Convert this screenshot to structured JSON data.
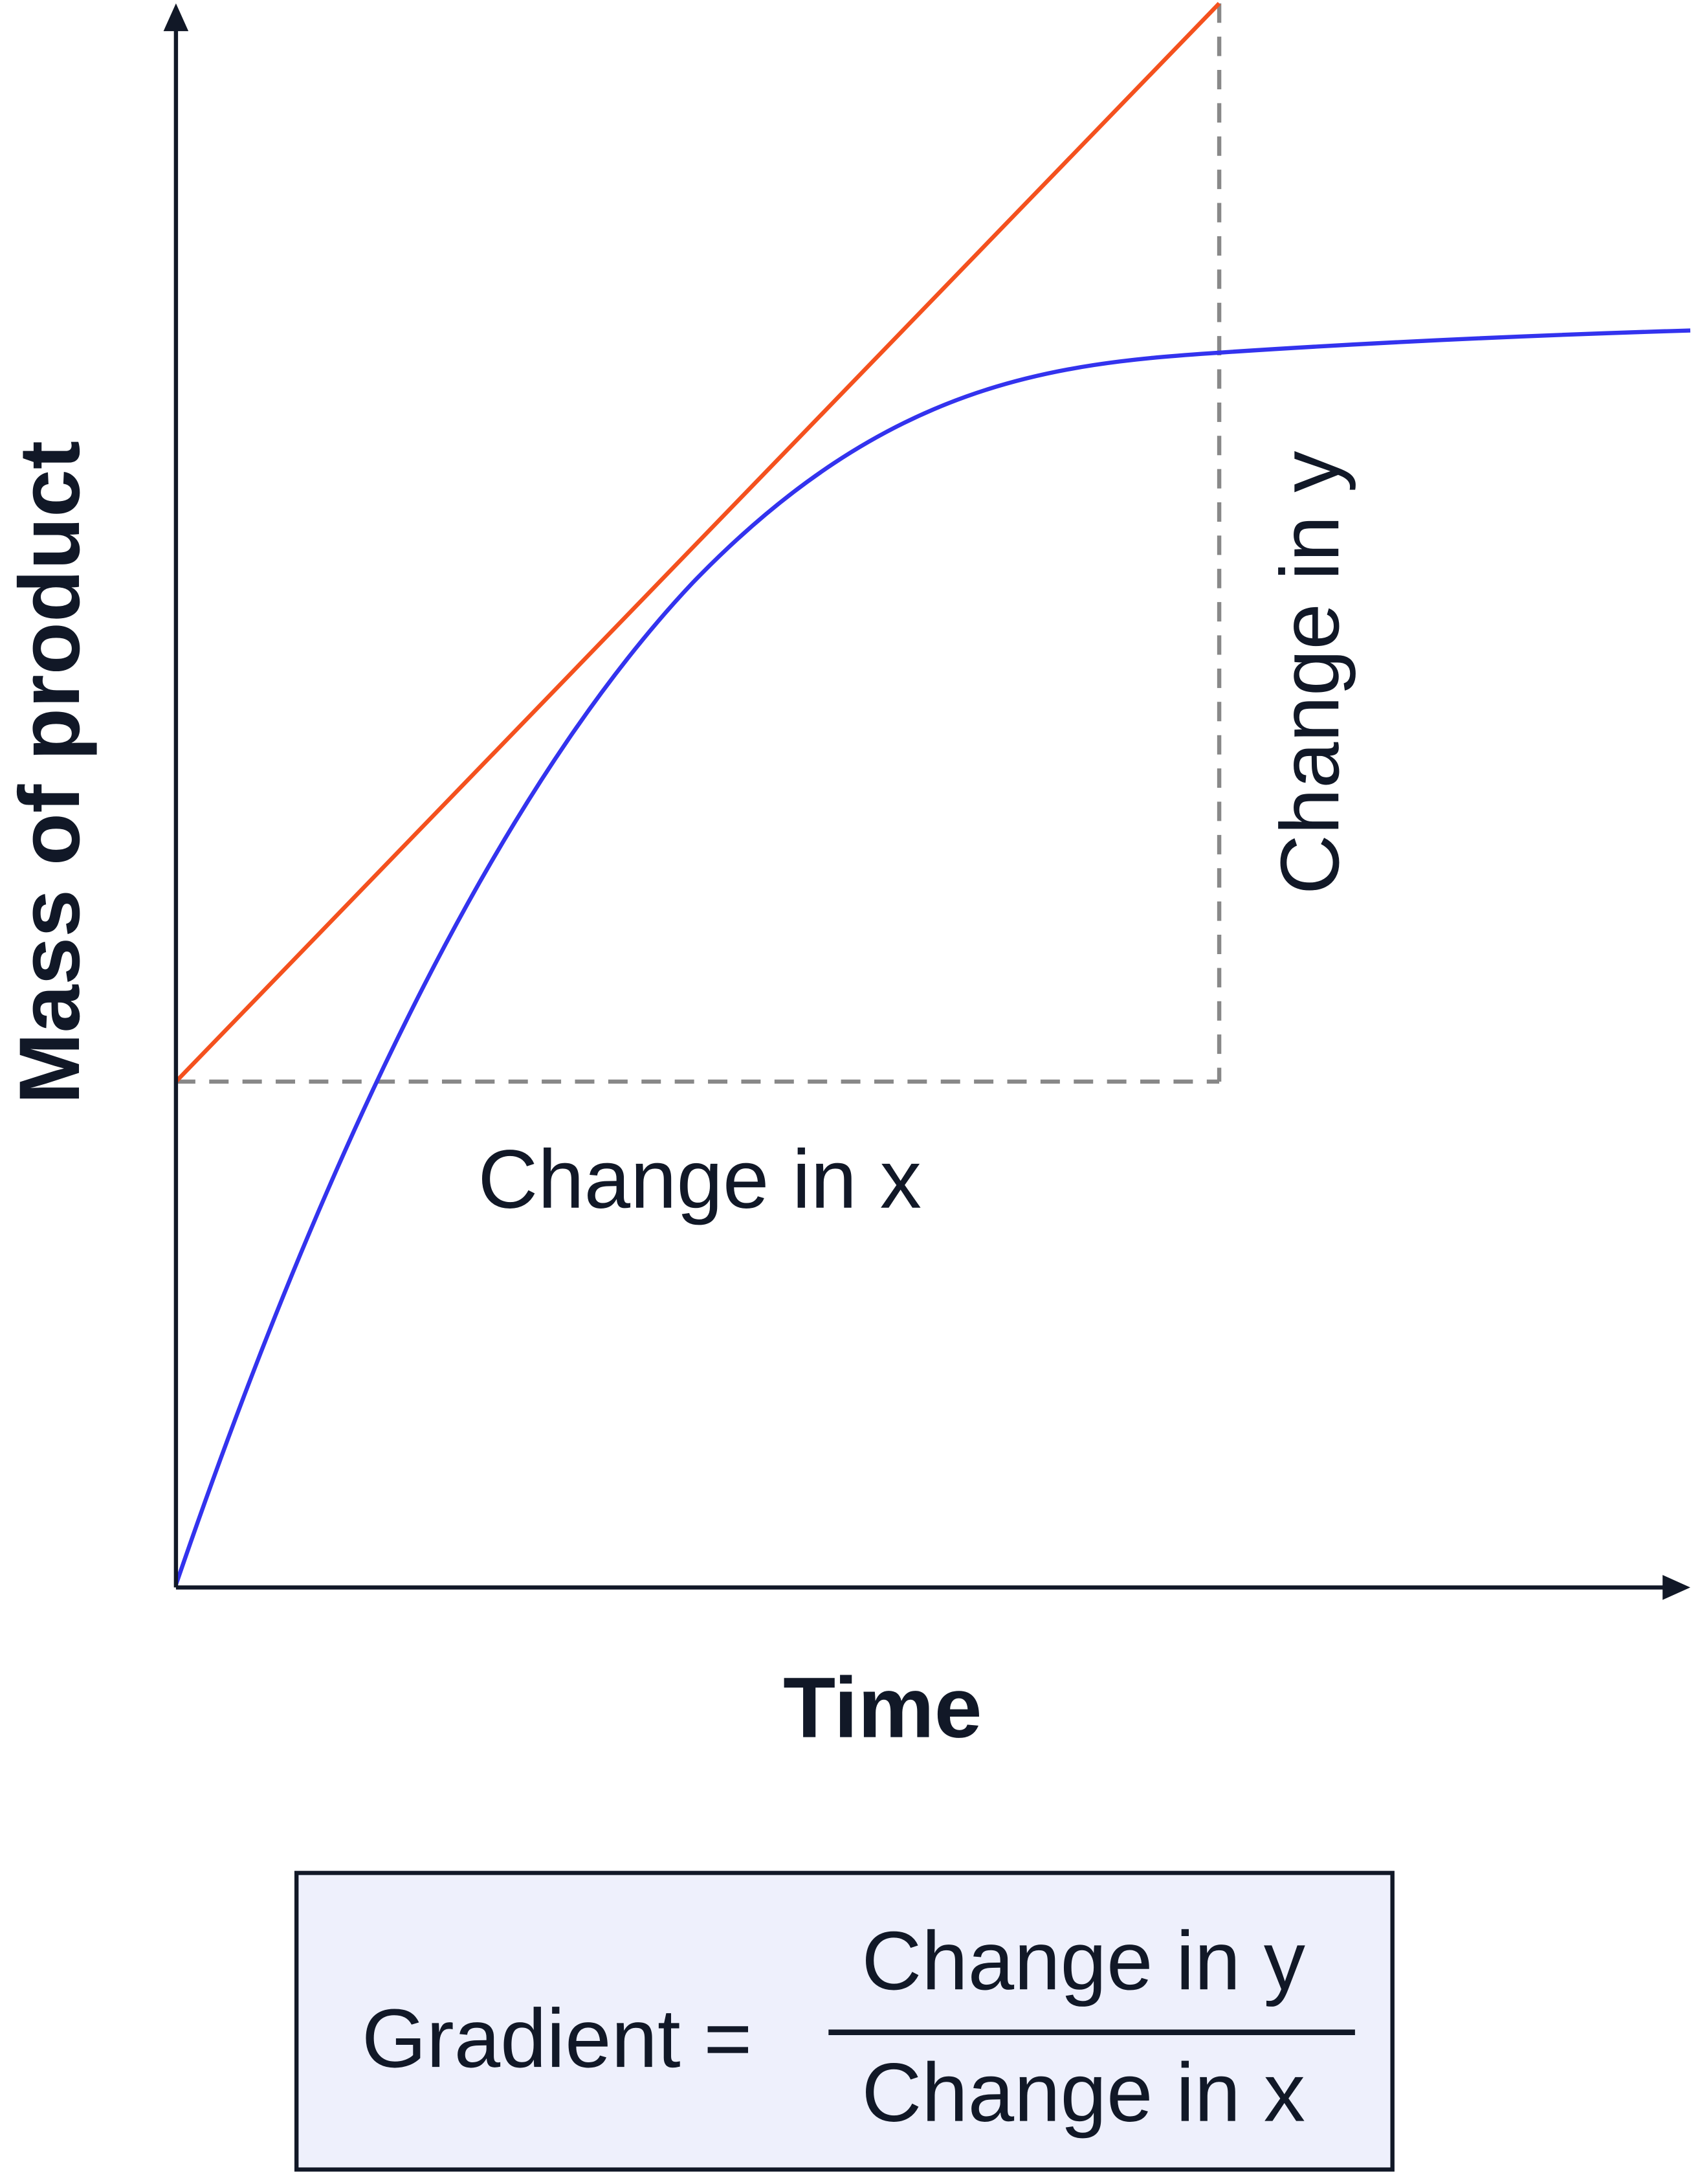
{
  "axes": {
    "y_label": "Mass of product",
    "x_label": "Time"
  },
  "annotations": {
    "change_x": "Change in x",
    "change_y": "Change in y"
  },
  "formula": {
    "lhs": "Gradient =",
    "numerator": "Change in y",
    "denominator": "Change in x"
  }
}
